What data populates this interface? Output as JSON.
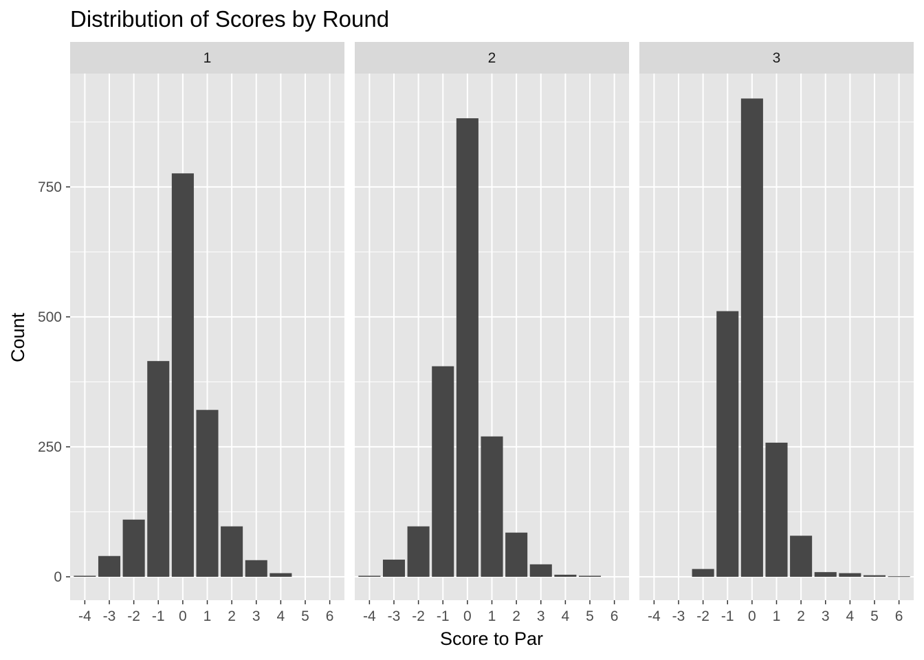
{
  "chart_data": {
    "type": "bar",
    "title": "Distribution of Scores by Round",
    "xlabel": "Score to Par",
    "ylabel": "Count",
    "x": [
      -4,
      -3,
      -2,
      -1,
      0,
      1,
      2,
      3,
      4,
      5,
      6
    ],
    "x_tick_labels": [
      "-4",
      "-3",
      "-2",
      "-1",
      "0",
      "1",
      "2",
      "3",
      "4",
      "5",
      "6"
    ],
    "y_ticks": [
      0,
      250,
      500,
      750
    ],
    "y_tick_labels": [
      "0",
      "250",
      "500",
      "750"
    ],
    "ylim": [
      -45,
      968
    ],
    "xlim": [
      -4.6,
      6.6
    ],
    "grid": true,
    "colors": {
      "panel_background": "#e5e5e5",
      "strip_background": "#d9d9d9",
      "bar_fill": "#474747",
      "grid_line": "#ffffff"
    },
    "facets": [
      {
        "label": "1",
        "values": [
          2,
          40,
          110,
          415,
          776,
          321,
          97,
          32,
          7,
          0,
          0
        ]
      },
      {
        "label": "2",
        "values": [
          2,
          33,
          97,
          405,
          882,
          270,
          85,
          24,
          4,
          2,
          0
        ]
      },
      {
        "label": "3",
        "values": [
          0,
          0,
          15,
          511,
          920,
          258,
          79,
          9,
          7,
          3,
          1
        ]
      }
    ]
  }
}
